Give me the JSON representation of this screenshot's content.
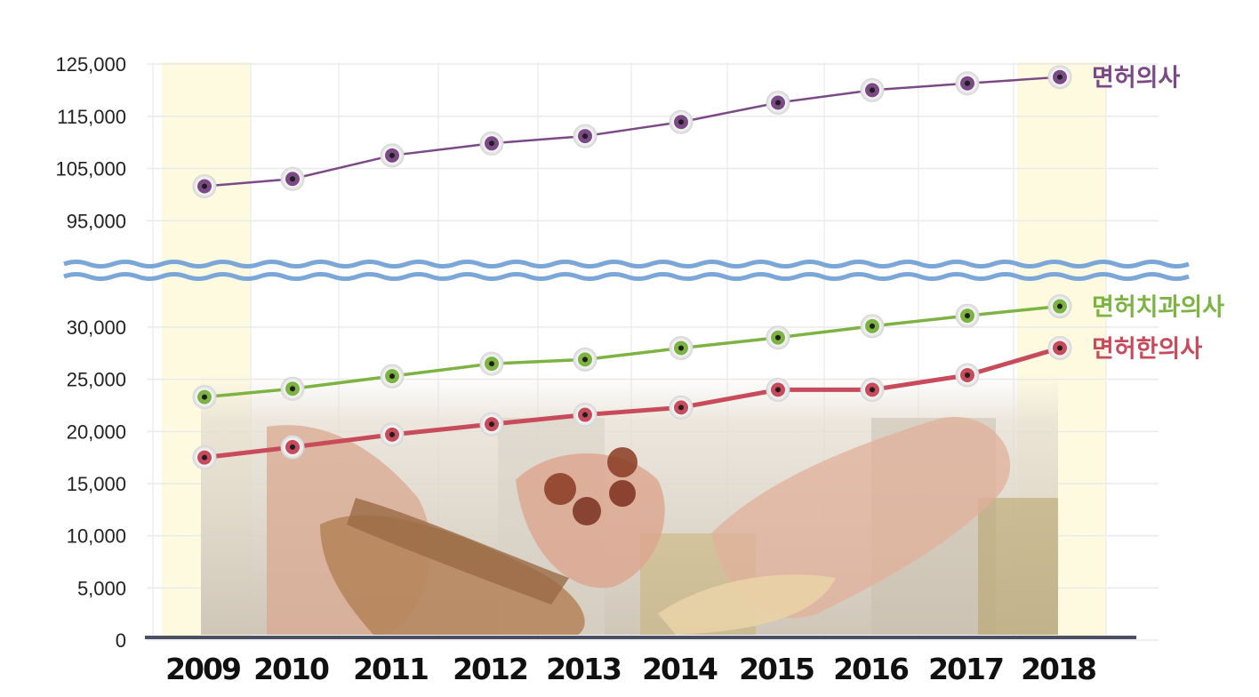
{
  "chart_data": {
    "type": "line",
    "axis_break": true,
    "x": [
      "2009",
      "2010",
      "2011",
      "2012",
      "2013",
      "2014",
      "2015",
      "2016",
      "2017",
      "2018"
    ],
    "y_ticks_upper": [
      "95,000",
      "105,000",
      "115,000",
      "125,000"
    ],
    "y_ticks_lower": [
      "0",
      "5,000",
      "10,000",
      "15,000",
      "20,000",
      "25,000",
      "30,000"
    ],
    "ylim_upper": [
      85000,
      125000
    ],
    "ylim_lower": [
      0,
      30000
    ],
    "grid": true,
    "highlighted_years": [
      "2009",
      "2018"
    ],
    "series": [
      {
        "name": "면허의사",
        "color": "#7b4a86",
        "panel": "upper",
        "values": [
          101600,
          103000,
          107500,
          109800,
          111200,
          113900,
          117600,
          120000,
          121300,
          122500
        ]
      },
      {
        "name": "면허치과의사",
        "color": "#7cb342",
        "panel": "lower",
        "values": [
          23300,
          24100,
          25300,
          26500,
          26900,
          28000,
          29000,
          30100,
          31100,
          32000
        ]
      },
      {
        "name": "면허한의사",
        "color": "#c74b5b",
        "panel": "lower",
        "values": [
          17500,
          18500,
          19700,
          20700,
          21600,
          22300,
          24000,
          24000,
          25400,
          28000
        ]
      }
    ]
  }
}
